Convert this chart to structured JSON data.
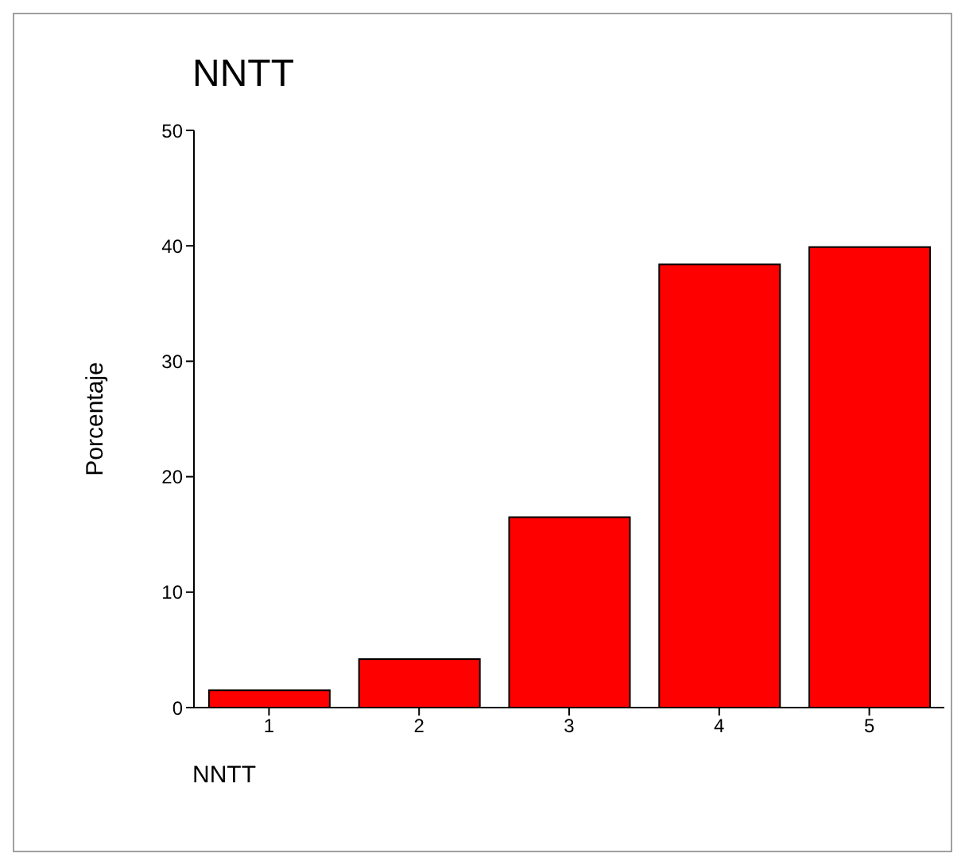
{
  "chart_data": {
    "type": "bar",
    "title": "NNTT",
    "xlabel": "NNTT",
    "ylabel": "Porcentaje",
    "categories": [
      "1",
      "2",
      "3",
      "4",
      "5"
    ],
    "values": [
      1.5,
      4.2,
      16.5,
      38.4,
      39.9
    ],
    "color": "#ff0000",
    "ylim": [
      0,
      50
    ],
    "yticks": [
      0,
      10,
      20,
      30,
      40,
      50
    ],
    "grid": false,
    "legend": false
  }
}
